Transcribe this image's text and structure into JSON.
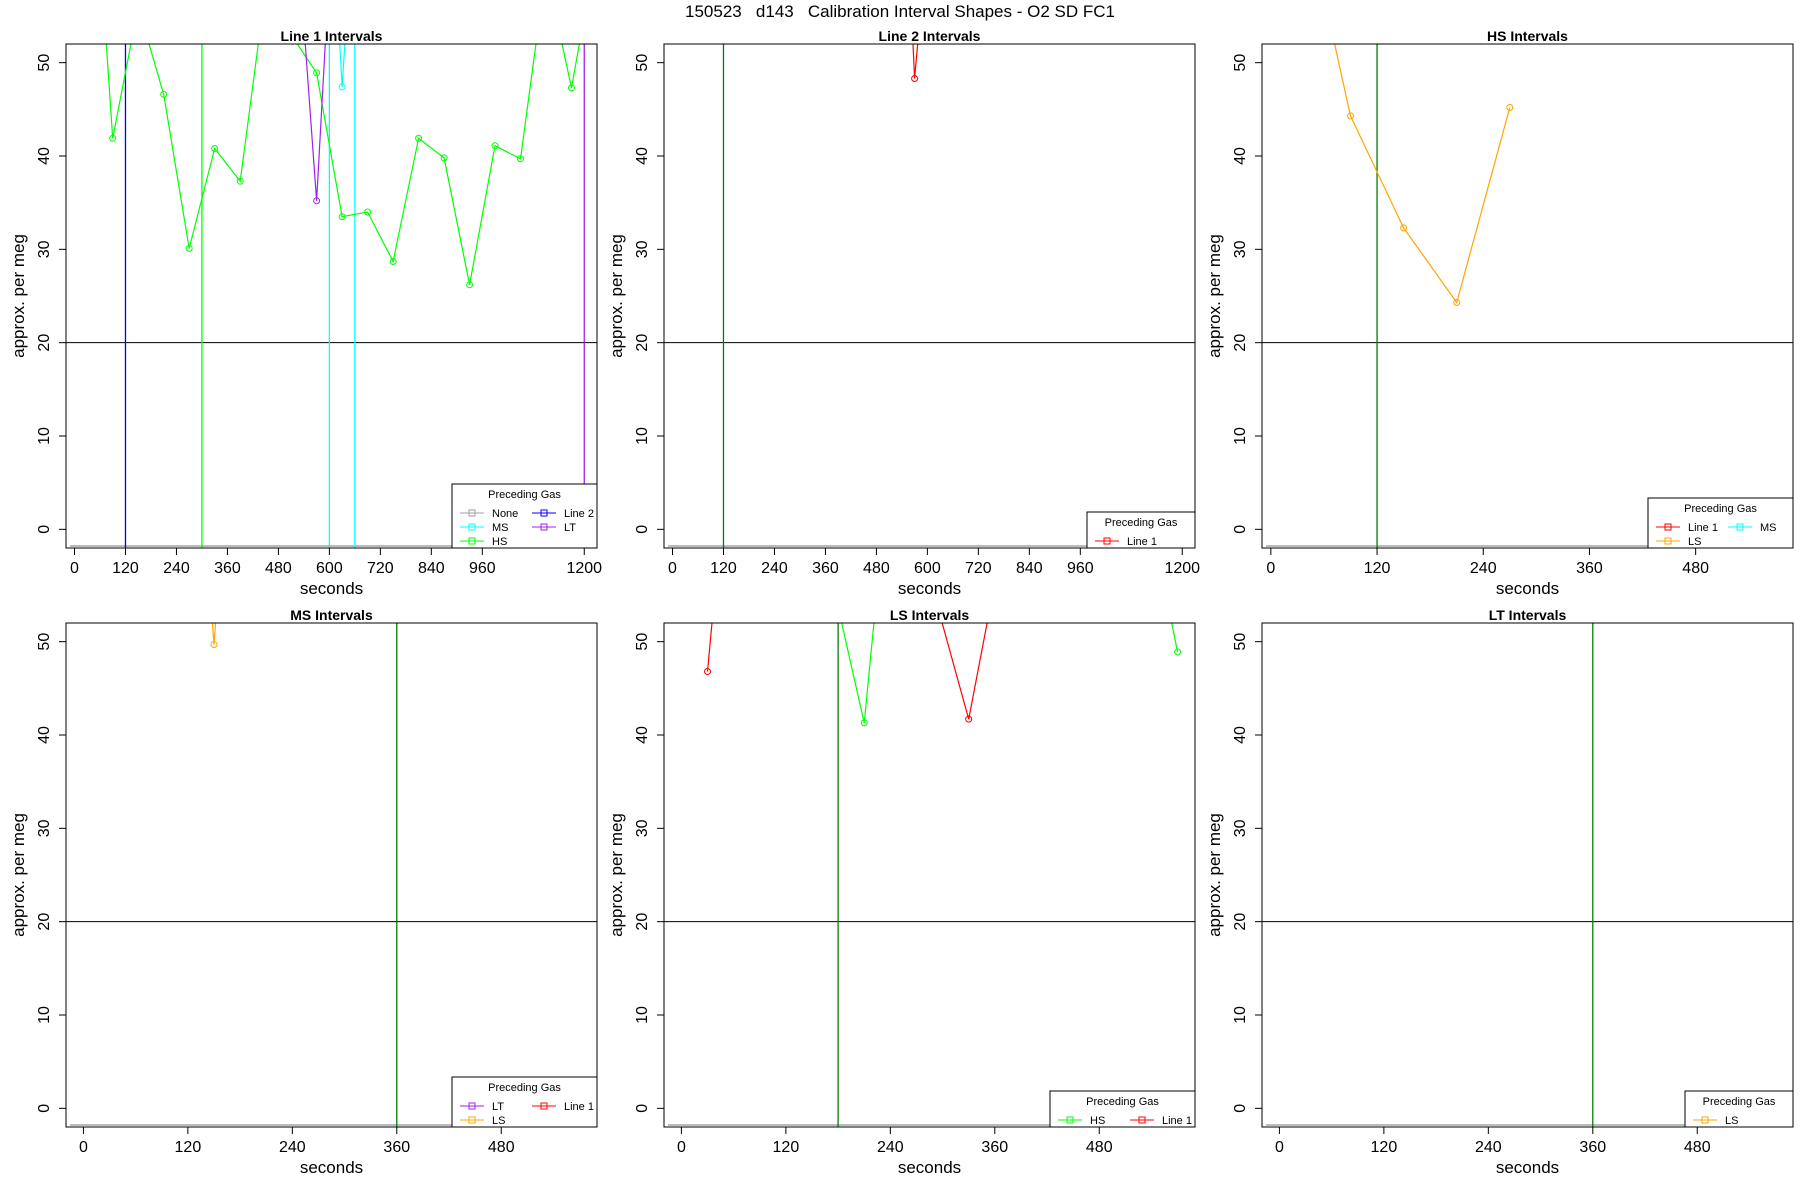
{
  "title": "150523   d143   Calibration Interval Shapes - O2 SD FC1",
  "colors": {
    "None": "#9e9e9e",
    "MS": "#00ffff",
    "HS": "#00ff00",
    "Line 2": "#0000ff",
    "LT": "#a020f0",
    "Line 1": "#ff0000",
    "LS": "#ffa500",
    "vline": "#008000",
    "hline": "#000000"
  },
  "chart_data": [
    {
      "type": "line",
      "title": "Line 1 Intervals",
      "xlabel": "seconds",
      "ylabel": "approx. per meg",
      "xlim": [
        -20,
        1230
      ],
      "ylim": [
        -2,
        52
      ],
      "xticks": [
        0,
        120,
        240,
        360,
        480,
        600,
        720,
        840,
        960,
        1200
      ],
      "yticks": [
        0,
        10,
        20,
        30,
        40,
        50
      ],
      "hline": 20,
      "vlines": [
        {
          "x": 120,
          "color": "Line 2"
        },
        {
          "x": 300,
          "color": "HS"
        },
        {
          "x": 600,
          "color": "MS"
        },
        {
          "x": 660,
          "color": "MS"
        },
        {
          "x": 1200,
          "color": "LT"
        }
      ],
      "legend": {
        "title": "Preceding Gas",
        "entries": [
          "None",
          "MS",
          "HS",
          "Line 2",
          "LT"
        ],
        "columns": 2,
        "position": "bottom-right"
      },
      "series": [
        {
          "name": "HS",
          "x": [
            60,
            90,
            150,
            210,
            270,
            330,
            390,
            450,
            510,
            570,
            630,
            690,
            750,
            810,
            870,
            930,
            990,
            1050,
            1110,
            1170,
            1200
          ],
          "y": [
            62,
            41.9,
            56,
            46.6,
            30.1,
            40.8,
            37.3,
            58,
            53,
            48.9,
            33.5,
            34,
            28.7,
            41.9,
            39.8,
            26.2,
            41.1,
            39.7,
            60,
            47.3,
            55
          ]
        },
        {
          "name": "LT",
          "x": [
            540,
            570,
            600
          ],
          "y": [
            54,
            35.2,
            60
          ]
        },
        {
          "name": "MS",
          "x": [
            615,
            630,
            645
          ],
          "y": [
            60,
            47.4,
            58
          ]
        }
      ]
    },
    {
      "type": "line",
      "title": "Line 2 Intervals",
      "xlabel": "seconds",
      "ylabel": "approx. per meg",
      "xlim": [
        -20,
        1230
      ],
      "ylim": [
        -2,
        52
      ],
      "xticks": [
        0,
        120,
        240,
        360,
        480,
        600,
        720,
        840,
        960,
        1200
      ],
      "yticks": [
        0,
        10,
        20,
        30,
        40,
        50
      ],
      "hline": 20,
      "vlines": [
        {
          "x": 120,
          "color": "vline"
        }
      ],
      "legend": {
        "title": "Preceding Gas",
        "entries": [
          "Line 1"
        ],
        "columns": 1,
        "position": "bottom-right"
      },
      "series": [
        {
          "name": "Line 1",
          "x": [
            560,
            570,
            585
          ],
          "y": [
            58,
            48.3,
            56
          ]
        }
      ]
    },
    {
      "type": "line",
      "title": "HS Intervals",
      "xlabel": "seconds",
      "ylabel": "approx. per meg",
      "xlim": [
        -10,
        590
      ],
      "ylim": [
        -2,
        52
      ],
      "xticks": [
        0,
        120,
        240,
        360,
        480
      ],
      "yticks": [
        0,
        10,
        20,
        30,
        40,
        50
      ],
      "hline": 20,
      "vlines": [
        {
          "x": 120,
          "color": "vline"
        }
      ],
      "legend": {
        "title": "Preceding Gas",
        "entries": [
          "Line 1",
          "LS",
          "MS"
        ],
        "columns": 2,
        "position": "bottom-right"
      },
      "series": [
        {
          "name": "LS",
          "x": [
            30,
            90,
            150,
            210,
            270
          ],
          "y": [
            70,
            44.3,
            32.3,
            24.3,
            45.2
          ]
        }
      ]
    },
    {
      "type": "line",
      "title": "MS Intervals",
      "xlabel": "seconds",
      "ylabel": "approx. per meg",
      "xlim": [
        -20,
        590
      ],
      "ylim": [
        -2,
        52
      ],
      "xticks": [
        0,
        120,
        240,
        360,
        480
      ],
      "yticks": [
        0,
        10,
        20,
        30,
        40,
        50
      ],
      "hline": 20,
      "vlines": [
        {
          "x": 360,
          "color": "vline"
        }
      ],
      "legend": {
        "title": "Preceding Gas",
        "entries": [
          "LT",
          "LS",
          "Line 1"
        ],
        "columns": 2,
        "position": "bottom-right"
      },
      "series": [
        {
          "name": "LS",
          "x": [
            145,
            150,
            155
          ],
          "y": [
            56,
            49.7,
            56
          ]
        }
      ]
    },
    {
      "type": "line",
      "title": "LS Intervals",
      "xlabel": "seconds",
      "ylabel": "approx. per meg",
      "xlim": [
        -20,
        590
      ],
      "ylim": [
        -2,
        52
      ],
      "xticks": [
        0,
        120,
        240,
        360,
        480
      ],
      "yticks": [
        0,
        10,
        20,
        30,
        40,
        50
      ],
      "hline": 20,
      "vlines": [
        {
          "x": 180,
          "color": "vline"
        }
      ],
      "legend": {
        "title": "Preceding Gas",
        "entries": [
          "HS",
          "Line 1"
        ],
        "columns": 2,
        "position": "bottom-right"
      },
      "series": [
        {
          "name": "Line 1",
          "x": [
            30,
            45
          ],
          "y": [
            46.8,
            62
          ]
        },
        {
          "name": "HS",
          "x": [
            160,
            210,
            240
          ],
          "y": [
            62,
            41.3,
            70
          ]
        },
        {
          "name": "Line 1",
          "x": [
            270,
            330,
            380
          ],
          "y": [
            62,
            41.7,
            66
          ]
        },
        {
          "name": "HS",
          "x": [
            550,
            570
          ],
          "y": [
            58,
            48.9
          ]
        }
      ]
    },
    {
      "type": "line",
      "title": "LT Intervals",
      "xlabel": "seconds",
      "ylabel": "approx. per meg",
      "xlim": [
        -20,
        590
      ],
      "ylim": [
        -2,
        52
      ],
      "xticks": [
        0,
        120,
        240,
        360,
        480
      ],
      "yticks": [
        0,
        10,
        20,
        30,
        40,
        50
      ],
      "hline": 20,
      "vlines": [
        {
          "x": 360,
          "color": "vline"
        }
      ],
      "legend": {
        "title": "Preceding Gas",
        "entries": [
          "LS"
        ],
        "columns": 1,
        "position": "bottom-right"
      },
      "series": []
    }
  ]
}
